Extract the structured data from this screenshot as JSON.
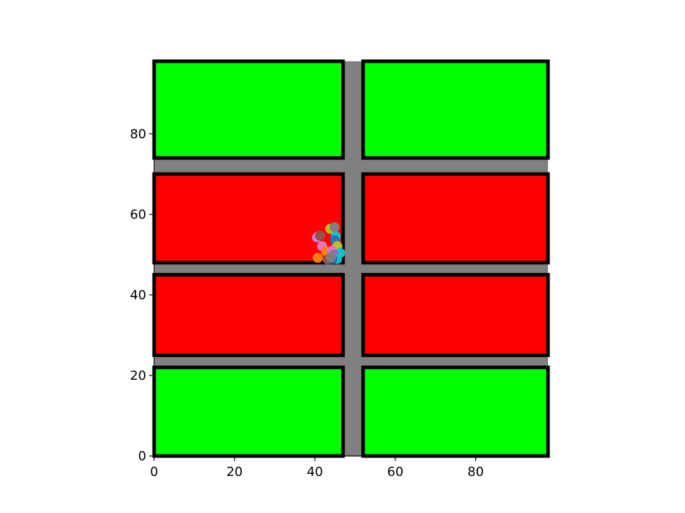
{
  "chart_data": {
    "type": "scatter",
    "xlim": [
      0,
      98
    ],
    "ylim": [
      0,
      98
    ],
    "x_ticks": [
      0,
      20,
      40,
      60,
      80
    ],
    "y_ticks": [
      0,
      20,
      40,
      60,
      80
    ],
    "grid": false,
    "background": "#808080",
    "colors": {
      "safe_zone": "#00ff00",
      "danger_zone": "#ff0000",
      "road": "#808080",
      "border": "#000000"
    },
    "zones": [
      {
        "kind": "safe",
        "x": [
          0,
          47
        ],
        "y": [
          74,
          98
        ]
      },
      {
        "kind": "safe",
        "x": [
          52,
          98
        ],
        "y": [
          74,
          98
        ]
      },
      {
        "kind": "danger",
        "x": [
          0,
          47
        ],
        "y": [
          48,
          70
        ]
      },
      {
        "kind": "danger",
        "x": [
          52,
          98
        ],
        "y": [
          48,
          70
        ]
      },
      {
        "kind": "danger",
        "x": [
          0,
          47
        ],
        "y": [
          25,
          45
        ]
      },
      {
        "kind": "danger",
        "x": [
          52,
          98
        ],
        "y": [
          25,
          45
        ]
      },
      {
        "kind": "safe",
        "x": [
          0,
          47
        ],
        "y": [
          0,
          22
        ]
      },
      {
        "kind": "safe",
        "x": [
          52,
          98
        ],
        "y": [
          0,
          22
        ]
      }
    ],
    "points": [
      {
        "x": 40.5,
        "y": 54.3,
        "color": "#e377c2"
      },
      {
        "x": 41.3,
        "y": 54.7,
        "color": "#8c564b"
      },
      {
        "x": 43.8,
        "y": 56.4,
        "color": "#bcbd22"
      },
      {
        "x": 44.9,
        "y": 56.8,
        "color": "#7f7f7f"
      },
      {
        "x": 45.2,
        "y": 54.5,
        "color": "#17becf"
      },
      {
        "x": 45.0,
        "y": 53.6,
        "color": "#1f77b4"
      },
      {
        "x": 41.8,
        "y": 52.1,
        "color": "#e377c2"
      },
      {
        "x": 45.6,
        "y": 52.1,
        "color": "#bcbd22"
      },
      {
        "x": 42.8,
        "y": 50.8,
        "color": "#ff7f0e"
      },
      {
        "x": 44.3,
        "y": 51.0,
        "color": "#e377c2"
      },
      {
        "x": 46.3,
        "y": 50.4,
        "color": "#17becf"
      },
      {
        "x": 44.7,
        "y": 50.0,
        "color": "#9467bd"
      },
      {
        "x": 40.7,
        "y": 49.2,
        "color": "#ff7f0e"
      },
      {
        "x": 43.2,
        "y": 48.8,
        "color": "#8c564b"
      },
      {
        "x": 45.5,
        "y": 48.9,
        "color": "#17becf"
      },
      {
        "x": 44.4,
        "y": 48.9,
        "color": "#1f77b4"
      },
      {
        "x": 44.0,
        "y": 49.4,
        "color": "#7f7f7f"
      }
    ]
  }
}
